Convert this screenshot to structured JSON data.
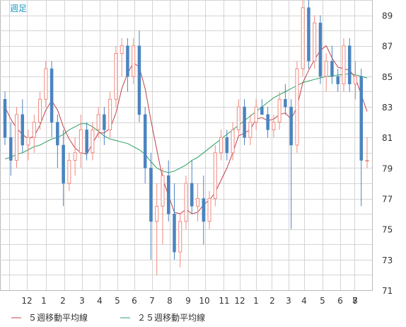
{
  "chart_data": {
    "type": "candlestick",
    "period_label": "週足",
    "ylim": [
      71,
      90
    ],
    "y_ticks": [
      71,
      73,
      75,
      77,
      79,
      81,
      83,
      85,
      87,
      89
    ],
    "x_tick_labels": [
      "12",
      "1",
      "2",
      "3",
      "4",
      "5",
      "6",
      "7",
      "8",
      "9",
      "10",
      "11",
      "12",
      "1",
      "2",
      "3",
      "4",
      "5",
      "6",
      "7",
      "8"
    ],
    "grid": true,
    "legend": [
      {
        "label": "５週移動平均線",
        "color": "#c0404a"
      },
      {
        "label": "２５週移動平均線",
        "color": "#2aa060"
      }
    ],
    "colors": {
      "up": "#f08a80",
      "down": "#4a84c0",
      "ma5": "#c0404a",
      "ma25": "#2aa060",
      "grid": "#cccccc",
      "axis_text": "#333333"
    },
    "candles": [
      [
        83.5,
        84.0,
        80.5,
        81.0
      ],
      [
        81.0,
        82.0,
        78.5,
        79.5
      ],
      [
        79.5,
        83.0,
        79.0,
        82.5
      ],
      [
        82.5,
        83.5,
        80.0,
        80.5
      ],
      [
        80.5,
        81.5,
        79.5,
        81.0
      ],
      [
        81.0,
        82.5,
        80.0,
        82.0
      ],
      [
        82.0,
        84.0,
        81.5,
        83.5
      ],
      [
        83.5,
        86.0,
        83.0,
        85.5
      ],
      [
        85.5,
        86.0,
        81.0,
        82.0
      ],
      [
        82.0,
        82.5,
        79.0,
        80.5
      ],
      [
        80.5,
        81.5,
        76.5,
        78.0
      ],
      [
        78.0,
        80.0,
        77.5,
        79.5
      ],
      [
        79.5,
        81.0,
        78.5,
        80.0
      ],
      [
        80.0,
        82.5,
        79.0,
        81.5
      ],
      [
        81.5,
        82.0,
        79.5,
        80.0
      ],
      [
        80.0,
        82.0,
        79.5,
        81.5
      ],
      [
        81.5,
        83.0,
        81.0,
        82.5
      ],
      [
        82.5,
        83.0,
        80.5,
        81.5
      ],
      [
        81.5,
        84.0,
        81.0,
        83.5
      ],
      [
        83.5,
        87.0,
        83.0,
        86.5
      ],
      [
        86.5,
        87.5,
        85.0,
        87.0
      ],
      [
        87.0,
        87.5,
        84.0,
        85.0
      ],
      [
        85.0,
        87.5,
        84.5,
        87.0
      ],
      [
        87.0,
        88.0,
        82.0,
        82.5
      ],
      [
        82.5,
        83.0,
        78.0,
        79.0
      ],
      [
        79.0,
        80.0,
        73.0,
        75.5
      ],
      [
        75.5,
        78.0,
        72.0,
        76.5
      ],
      [
        76.5,
        79.0,
        74.0,
        78.5
      ],
      [
        78.5,
        79.5,
        75.5,
        76.0
      ],
      [
        76.0,
        78.0,
        73.0,
        73.5
      ],
      [
        73.5,
        76.0,
        72.5,
        75.5
      ],
      [
        75.5,
        78.5,
        75.0,
        78.0
      ],
      [
        78.0,
        79.5,
        76.0,
        76.5
      ],
      [
        76.5,
        78.0,
        75.5,
        77.0
      ],
      [
        77.0,
        78.5,
        74.0,
        75.5
      ],
      [
        75.5,
        77.5,
        75.0,
        77.0
      ],
      [
        77.0,
        80.5,
        76.5,
        80.0
      ],
      [
        80.0,
        81.5,
        79.5,
        81.0
      ],
      [
        81.0,
        81.5,
        79.5,
        80.0
      ],
      [
        80.0,
        82.0,
        79.5,
        81.5
      ],
      [
        81.5,
        83.5,
        81.0,
        83.0
      ],
      [
        83.0,
        83.5,
        80.5,
        81.0
      ],
      [
        81.0,
        82.5,
        80.5,
        82.0
      ],
      [
        82.0,
        83.5,
        81.5,
        83.0
      ],
      [
        83.0,
        83.5,
        82.5,
        82.5
      ],
      [
        82.5,
        83.0,
        81.0,
        81.5
      ],
      [
        81.5,
        82.5,
        81.0,
        82.0
      ],
      [
        82.0,
        84.0,
        81.5,
        83.5
      ],
      [
        83.5,
        84.5,
        82.5,
        83.0
      ],
      [
        83.0,
        83.5,
        75.0,
        80.5
      ],
      [
        80.5,
        86.0,
        80.0,
        85.5
      ],
      [
        85.5,
        90.0,
        85.0,
        89.5
      ],
      [
        89.5,
        90.0,
        85.5,
        86.0
      ],
      [
        86.0,
        89.0,
        85.5,
        88.5
      ],
      [
        88.5,
        89.0,
        84.5,
        85.0
      ],
      [
        85.0,
        86.5,
        84.0,
        86.0
      ],
      [
        86.0,
        87.0,
        84.5,
        85.0
      ],
      [
        85.0,
        85.5,
        84.0,
        84.5
      ],
      [
        84.5,
        87.5,
        84.0,
        87.0
      ],
      [
        87.0,
        87.5,
        84.0,
        84.5
      ],
      [
        84.5,
        86.0,
        83.5,
        85.0
      ],
      [
        85.0,
        85.5,
        76.5,
        79.5
      ],
      [
        79.5,
        81.0,
        79.0,
        79.5
      ]
    ],
    "ma5": [
      83.0,
      82.2,
      81.6,
      81.2,
      80.9,
      81.1,
      81.8,
      82.8,
      83.4,
      82.8,
      81.7,
      80.9,
      80.3,
      80.0,
      79.9,
      80.6,
      81.3,
      81.3,
      81.6,
      82.6,
      84.2,
      85.2,
      85.9,
      85.6,
      84.2,
      82.1,
      80.2,
      78.3,
      77.2,
      76.1,
      76.0,
      76.3,
      76.0,
      76.1,
      76.6,
      76.9,
      77.4,
      78.2,
      79.0,
      80.0,
      81.1,
      81.3,
      81.5,
      82.2,
      82.3,
      82.1,
      82.2,
      82.5,
      82.6,
      82.2,
      83.0,
      84.6,
      85.4,
      86.1,
      86.7,
      87.0,
      86.2,
      85.6,
      85.5,
      85.4,
      84.9,
      83.8,
      82.7
    ],
    "ma25": [
      79.6,
      79.7,
      79.9,
      80.0,
      80.2,
      80.4,
      80.5,
      80.7,
      80.9,
      81.0,
      81.2,
      81.5,
      81.7,
      81.9,
      81.9,
      81.7,
      81.4,
      81.1,
      80.9,
      80.8,
      80.7,
      80.6,
      80.4,
      80.2,
      79.9,
      79.4,
      79.0,
      78.8,
      78.7,
      78.8,
      79.0,
      79.2,
      79.5,
      79.7,
      80.0,
      80.3,
      80.6,
      80.9,
      81.2,
      81.5,
      81.8,
      82.1,
      82.4,
      82.7,
      83.0,
      83.3,
      83.6,
      83.8,
      84.0,
      84.2,
      84.4,
      84.6,
      84.7,
      84.8,
      84.9,
      85.0,
      85.0,
      85.1,
      85.1,
      85.2,
      85.1,
      85.0,
      84.9
    ]
  }
}
